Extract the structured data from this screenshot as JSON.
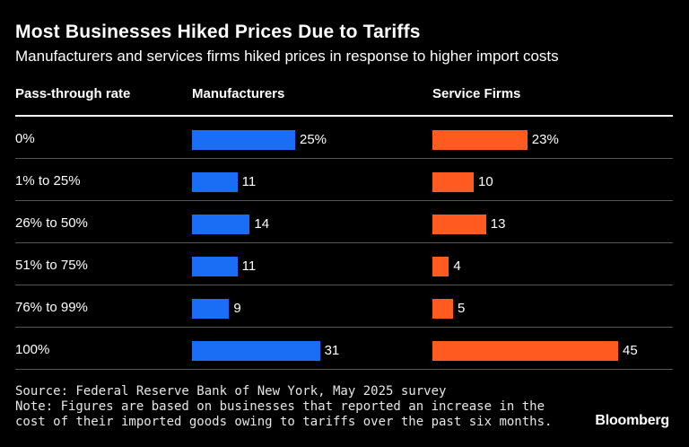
{
  "header": {
    "title": "Most Businesses Hiked Prices Due to Tariffs",
    "subtitle": "Manufacturers and services firms hiked prices in response to higher import costs"
  },
  "chart_data": {
    "type": "bar",
    "title": "Most Businesses Hiked Prices Due to Tariffs",
    "subtitle": "Manufacturers and services firms hiked prices in response to higher import costs",
    "category_header": "Pass-through rate",
    "categories": [
      "0%",
      "1% to 25%",
      "26% to 50%",
      "51% to 75%",
      "76% to 99%",
      "100%"
    ],
    "series": [
      {
        "name": "Manufacturers",
        "color": "#1a6ef5",
        "values": [
          25,
          11,
          14,
          11,
          9,
          31
        ],
        "labels": [
          "25%",
          "11",
          "14",
          "11",
          "9",
          "31"
        ]
      },
      {
        "name": "Service Firms",
        "color": "#ff5a1f",
        "values": [
          23,
          10,
          13,
          4,
          5,
          45
        ],
        "labels": [
          "23%",
          "10",
          "13",
          "4",
          "5",
          "45"
        ]
      }
    ],
    "unit": "%",
    "legend": "column-headers",
    "grid": false
  },
  "footer": {
    "source": "Source: Federal Reserve Bank of New York, May 2025 survey",
    "note_line1": "Note: Figures are based on businesses that reported an increase in the",
    "note_line2": "cost of their imported goods owing to tariffs over the past six months.",
    "brand": "Bloomberg"
  }
}
